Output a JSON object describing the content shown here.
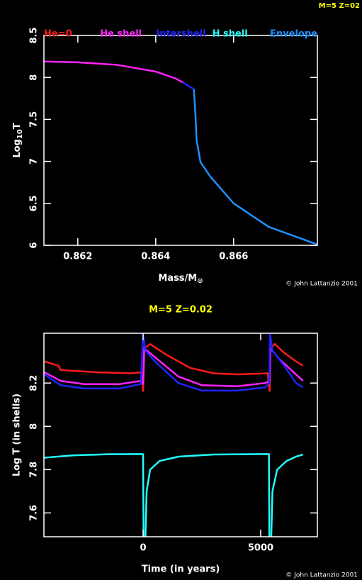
{
  "corner_label": "M=5 Z=02",
  "chart_data": [
    {
      "type": "line",
      "legend": [
        {
          "name": "He=0",
          "color": "#ff1a1a"
        },
        {
          "name": "He shell",
          "color": "#ff22ff"
        },
        {
          "name": "Intershell",
          "color": "#2222ff"
        },
        {
          "name": "H shell",
          "color": "#22ffff"
        },
        {
          "name": "Envelope",
          "color": "#1e90ff"
        }
      ],
      "xlabel": [
        "Mass/M",
        "⊙"
      ],
      "ylabel": [
        "Log",
        "10",
        "T"
      ],
      "credit": "© John Lattanzio 2001",
      "xlim": [
        0.86113,
        0.86815
      ],
      "xticks": [
        0.862,
        0.864,
        0.866
      ],
      "ylim": [
        6,
        8.5
      ],
      "yticks": [
        6,
        6.5,
        7,
        7.5,
        8,
        8.5
      ],
      "series": [
        {
          "color": "#ff22ff",
          "x": [
            0.86113,
            0.862,
            0.863,
            0.864,
            0.8645,
            0.8647
          ],
          "values": [
            8.19,
            8.18,
            8.15,
            8.07,
            7.99,
            7.94
          ]
        },
        {
          "color": "#2222ff",
          "x": [
            0.8647,
            0.86498
          ],
          "values": [
            7.94,
            7.86
          ]
        },
        {
          "color": "#1e90ff",
          "x": [
            0.86498,
            0.86502,
            0.86505,
            0.86515,
            0.8654,
            0.866,
            0.8669,
            0.8675,
            0.86815
          ],
          "values": [
            7.86,
            7.55,
            7.25,
            6.99,
            6.82,
            6.5,
            6.22,
            6.12,
            6.01
          ]
        }
      ]
    },
    {
      "type": "line",
      "title": "M=5 Z=0.02",
      "xlabel": "Time (in years)",
      "ylabel": "Log T (in shells)",
      "credit": "© John Lattanzio 2001",
      "xlim": [
        -4217,
        7410
      ],
      "xticks": [
        0,
        5000
      ],
      "ylim": [
        7.49,
        8.43
      ],
      "yticks": [
        7.6,
        7.8,
        8,
        8.2
      ],
      "series": [
        {
          "color": "#ff1a1a",
          "x": [
            -4200,
            -3600,
            -3500,
            -2000,
            -500,
            -50,
            0,
            50,
            300,
            1000,
            2000,
            3000,
            4000,
            5300,
            5380,
            5420,
            5600,
            6000,
            6500,
            6800
          ],
          "values": [
            8.3,
            8.28,
            8.26,
            8.25,
            8.245,
            8.25,
            8.16,
            8.36,
            8.38,
            8.33,
            8.27,
            8.245,
            8.24,
            8.245,
            8.16,
            8.36,
            8.38,
            8.34,
            8.3,
            8.28
          ]
        },
        {
          "color": "#ff22ff",
          "x": [
            -4200,
            -3500,
            -2500,
            -1000,
            -100,
            0,
            50,
            500,
            1500,
            2500,
            4000,
            5200,
            5380,
            5420,
            5800,
            6400,
            6800
          ],
          "values": [
            8.25,
            8.21,
            8.195,
            8.195,
            8.21,
            8.2,
            8.36,
            8.32,
            8.23,
            8.19,
            8.185,
            8.2,
            8.21,
            8.36,
            8.31,
            8.25,
            8.21
          ]
        },
        {
          "color": "#2222ff",
          "x": [
            -4200,
            -3500,
            -2500,
            -1000,
            -100,
            0,
            100,
            600,
            1500,
            2500,
            4000,
            5200,
            5360,
            5400,
            5500,
            6000,
            6500,
            6800
          ],
          "values": [
            8.24,
            8.19,
            8.175,
            8.175,
            8.195,
            8.43,
            8.35,
            8.29,
            8.2,
            8.165,
            8.165,
            8.18,
            8.2,
            8.43,
            8.35,
            8.28,
            8.2,
            8.18
          ]
        },
        {
          "color": "#22ffff",
          "x": [
            -4200,
            -3000,
            -1500,
            -50,
            0,
            20,
            100,
            150,
            300,
            700,
            1500,
            3000,
            5300,
            5350,
            5370,
            5450,
            5500,
            5700,
            6100,
            6500,
            6800
          ],
          "values": [
            7.855,
            7.866,
            7.871,
            7.872,
            7.871,
            7.49,
            7.49,
            7.7,
            7.8,
            7.84,
            7.86,
            7.87,
            7.872,
            7.871,
            7.49,
            7.49,
            7.7,
            7.8,
            7.84,
            7.86,
            7.87
          ]
        }
      ]
    }
  ]
}
